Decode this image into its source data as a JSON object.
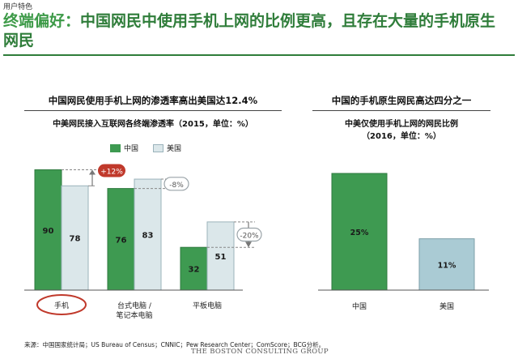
{
  "slide_tag": "用户特色",
  "headline": {
    "lead": "终端偏好：",
    "body": "中国网民中使用手机上网的比例更高，且存在大量的手机原生网民"
  },
  "colors": {
    "green": "#3e9a51",
    "green_edge": "#2f7a3f",
    "light": "#dbe7ea",
    "light_edge": "#9bb3bb",
    "blue_bar": "#aacbd4",
    "headline": "#2f7d3a",
    "callout_red": "#c0392b",
    "callout_grey": "#9aa3a8"
  },
  "left_panel": {
    "title": "中国网民使用手机上网的渗透率高出美国达12.4%",
    "chart_title": "中美网民接入互联网各终端渗透率（2015，单位：%）",
    "legend": [
      "中国",
      "美国"
    ],
    "callouts": [
      "+12%",
      "-8%",
      "-20%"
    ]
  },
  "right_panel": {
    "title": "中国的手机原生网民高达四分之一",
    "chart_title_line1": "中美仅使用手机上网的网民比例",
    "chart_title_line2": "（2016，单位：%）"
  },
  "chart_data": [
    {
      "type": "bar",
      "title": "中美网民接入互联网各终端渗透率（2015，单位：%）",
      "categories": [
        "手机",
        "台式电脑 / 笔记本电脑",
        "平板电脑"
      ],
      "category_lines": [
        [
          "手机"
        ],
        [
          "台式电脑 /",
          "笔记本电脑"
        ],
        [
          "平板电脑"
        ]
      ],
      "series": [
        {
          "name": "中国",
          "values": [
            90,
            76,
            32
          ]
        },
        {
          "name": "美国",
          "values": [
            78,
            83,
            51
          ]
        }
      ],
      "ylim": [
        0,
        100
      ],
      "grid": false,
      "legend": "top-center"
    },
    {
      "type": "bar",
      "title": "中美仅使用手机上网的网民比例（2016，单位：%）",
      "categories": [
        "中国",
        "美国"
      ],
      "values": [
        25,
        11
      ],
      "labels": [
        "25%",
        "11%"
      ],
      "ylim": [
        0,
        27.5
      ],
      "grid": false
    }
  ],
  "source": "来源：中国国家统计局；US Bureau of Census；CNNIC；Pew Research Center；ComScore；BCG分析。",
  "logo": "THE BOSTON CONSULTING GROUP"
}
